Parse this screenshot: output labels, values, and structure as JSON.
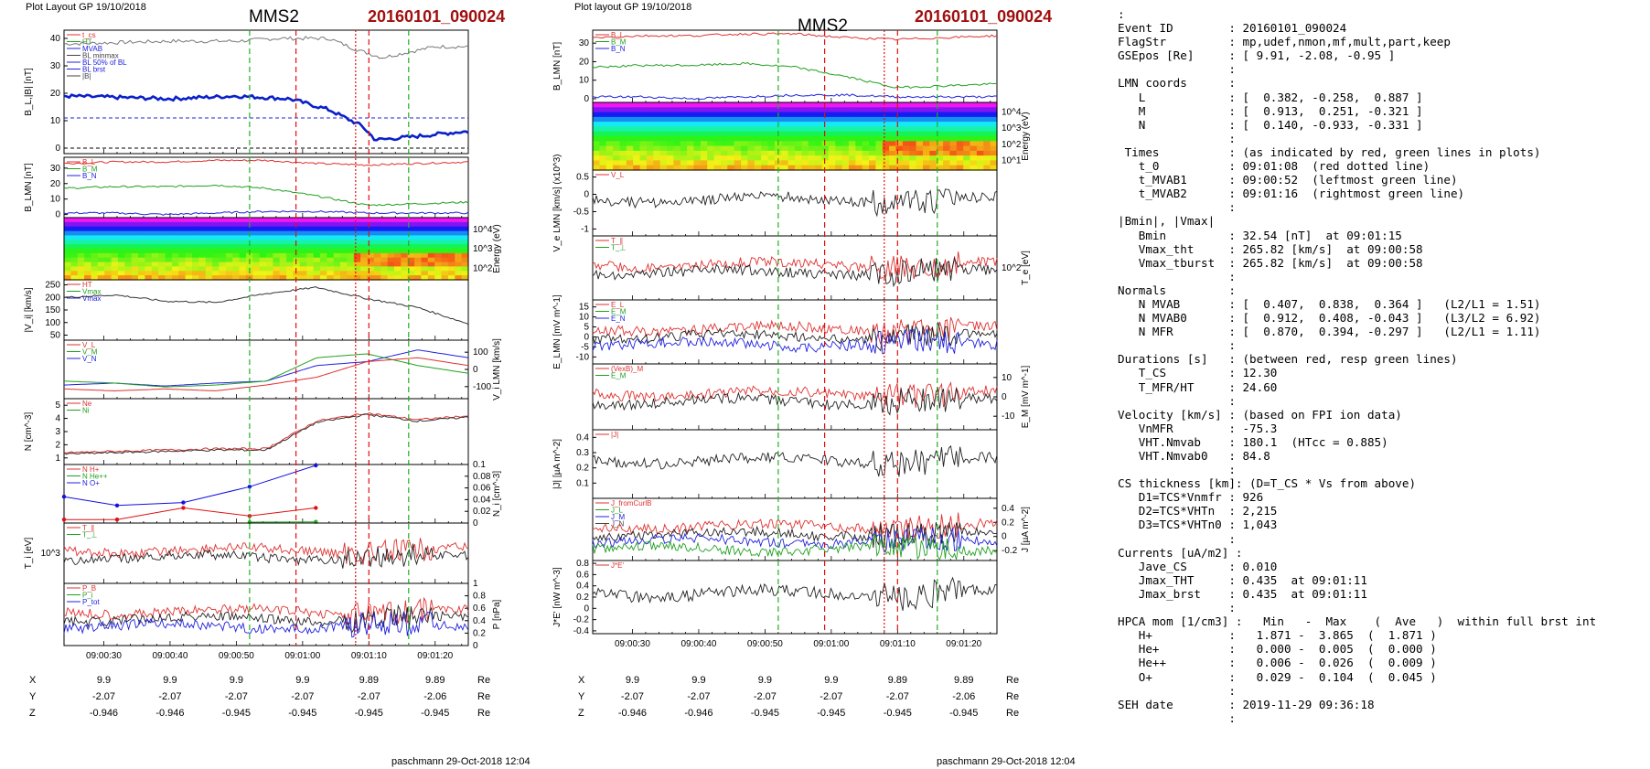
{
  "header": {
    "left_plot_label": "Plot Layout GP 19/10/2018",
    "mid_plot_label": "Plot layout GP 19/10/2018",
    "spacecraft": "MMS2",
    "event": "20160101_090024",
    "footer": "paschmann 29-Oct-2018 12:04"
  },
  "colors": {
    "event_red": "#a01010",
    "vline_red": "#e01010",
    "vline_green": "#20b020",
    "blue": "#1010e0",
    "dark_blue": "#0a20c8"
  },
  "time_ticks": [
    "09:00:30",
    "09:00:40",
    "09:00:50",
    "09:01:00",
    "09:01:10",
    "09:01:20"
  ],
  "coords": {
    "row_labels": [
      "X",
      "Y",
      "Z"
    ],
    "unit": "Re",
    "X": [
      "9.9",
      "9.9",
      "9.9",
      "9.9",
      "9.89",
      "9.89"
    ],
    "Y": [
      "-2.07",
      "-2.07",
      "-2.07",
      "-2.07",
      "-2.07",
      "-2.06"
    ],
    "Z": [
      "-0.946",
      "-0.946",
      "-0.945",
      "-0.945",
      "-0.945",
      "-0.945"
    ]
  },
  "chart_data": [
    {
      "type": "line",
      "title": "MMS2 20160101_090024",
      "ylabel": "B_L,|B| [nT]",
      "ylim": [
        -2,
        43
      ],
      "yticks": [
        0,
        10,
        20,
        30,
        40
      ],
      "legend": [
        "t_cs",
        "HT",
        "MVAB",
        "BL minmax",
        "BL 50% of BL",
        "BL brst",
        "|B|"
      ],
      "series": [
        {
          "name": "|B|",
          "x": [
            "09:00:24",
            "09:00:40",
            "09:00:50",
            "09:00:56",
            "09:01:04",
            "09:01:08",
            "09:01:12",
            "09:01:20",
            "09:01:24"
          ],
          "values": [
            38,
            39,
            39,
            40,
            40,
            36,
            33,
            37,
            37
          ]
        },
        {
          "name": "BL brst",
          "x": [
            "09:00:24",
            "09:00:40",
            "09:00:50",
            "09:00:58",
            "09:01:04",
            "09:01:09",
            "09:01:11",
            "09:01:16",
            "09:01:24"
          ],
          "values": [
            19,
            18,
            19,
            18,
            14,
            8,
            3,
            4,
            6
          ]
        }
      ],
      "hlines": [
        11,
        0
      ]
    },
    {
      "type": "line",
      "ylabel": "B_LMN [nT]",
      "ylim": [
        -2,
        37
      ],
      "yticks": [
        0,
        10,
        20,
        30
      ],
      "legend": [
        "B_L",
        "B_M",
        "B_N"
      ],
      "series": [
        {
          "name": "B_L",
          "values": [
            33,
            34,
            34,
            35,
            35,
            33,
            32,
            33,
            34
          ]
        },
        {
          "name": "B_M",
          "values": [
            17,
            18,
            18,
            19,
            17,
            12,
            6,
            7,
            8
          ]
        },
        {
          "name": "B_N",
          "values": [
            1,
            1,
            0,
            1,
            2,
            2,
            1,
            1,
            1
          ]
        }
      ]
    },
    {
      "type": "heatmap",
      "ylabel": "Energy (eV)",
      "ytick_labels": [
        "10^4",
        "10^3",
        "10^2"
      ]
    },
    {
      "type": "line",
      "ylabel": "|V_i| [km/s]",
      "ylim": [
        30,
        270
      ],
      "yticks": [
        50,
        100,
        150,
        200,
        250
      ],
      "legend": [
        "HT",
        "Vmax",
        "Vmax"
      ],
      "series": [
        {
          "name": "|V_i|",
          "values": [
            200,
            210,
            185,
            180,
            215,
            240,
            195,
            160,
            95
          ]
        }
      ]
    },
    {
      "type": "line",
      "ylabel": "V_i LMN [km/s]",
      "yticks": [
        100,
        0,
        -100
      ],
      "legend": [
        "V_L",
        "V_M",
        "V_N"
      ],
      "series": [
        {
          "name": "V_L",
          "values": [
            -80,
            -70,
            -85,
            -70,
            -60,
            20,
            40,
            100,
            60
          ]
        },
        {
          "name": "V_M",
          "values": [
            -60,
            -70,
            -90,
            -80,
            -60,
            60,
            80,
            20,
            -20
          ]
        },
        {
          "name": "V_N",
          "values": [
            -100,
            -110,
            -100,
            -110,
            -80,
            -40,
            40,
            60,
            20
          ]
        }
      ]
    },
    {
      "type": "line",
      "ylabel": "N [cm^-3]",
      "ylim": [
        0.5,
        5.5
      ],
      "yticks": [
        1,
        2,
        3,
        4,
        5
      ],
      "legend": [
        "Ne",
        "Ni"
      ],
      "series": [
        {
          "name": "Ne",
          "values": [
            1.4,
            1.5,
            1.6,
            1.7,
            1.7,
            3.8,
            4.4,
            3.9,
            4.2
          ]
        },
        {
          "name": "Ni",
          "values": [
            1.3,
            1.4,
            1.5,
            1.6,
            1.6,
            3.7,
            4.3,
            3.8,
            4.1
          ]
        }
      ]
    },
    {
      "type": "line",
      "ylabel": "N_i [cm^-3]",
      "ylim": [
        0,
        0.1
      ],
      "yticks": [
        0.0,
        0.02,
        0.04,
        0.06,
        0.08,
        0.1
      ],
      "legend": [
        "N H+",
        "N He++",
        "N O+"
      ],
      "series": [
        {
          "name": "N O+",
          "x": [
            "09:00:24",
            "09:00:32",
            "09:00:42",
            "09:00:52",
            "09:01:02"
          ],
          "values": [
            0.045,
            0.03,
            0.035,
            0.062,
            0.104
          ]
        },
        {
          "name": "N He++",
          "x": [
            "09:00:24",
            "09:00:32",
            "09:00:42",
            "09:00:52",
            "09:01:02"
          ],
          "values": [
            0.006,
            0.006,
            0.026,
            0.012,
            0.026
          ]
        },
        {
          "name": "N H+",
          "x": [
            "09:00:52",
            "09:01:02"
          ],
          "values": [
            0.0,
            0.002
          ]
        }
      ]
    },
    {
      "type": "line",
      "ylabel": "T_i [eV]",
      "ytick_labels": [
        "10^3"
      ],
      "legend": [
        "T_∥",
        "T_⊥"
      ],
      "series": []
    },
    {
      "type": "line",
      "ylabel": "P [nPa]",
      "ylim": [
        0,
        1.0
      ],
      "yticks": [
        0.0,
        0.2,
        0.4,
        0.6,
        0.8,
        1.0
      ],
      "legend": [
        "P_B",
        "P_i",
        "P_tot"
      ],
      "series": []
    },
    {
      "type": "line",
      "ylabel": "B_LMN [nT]",
      "ylim": [
        -2,
        37
      ],
      "yticks": [
        0,
        10,
        20,
        30
      ],
      "legend": [
        "B_L",
        "B_M",
        "B_N"
      ],
      "series": [
        {
          "name": "B_L",
          "values": [
            33,
            34,
            34,
            35,
            35,
            33,
            32,
            33,
            34
          ]
        },
        {
          "name": "B_M",
          "values": [
            17,
            18,
            18,
            19,
            17,
            12,
            6,
            7,
            8
          ]
        },
        {
          "name": "B_N",
          "values": [
            1,
            1,
            0,
            1,
            2,
            2,
            1,
            1,
            1
          ]
        }
      ]
    },
    {
      "type": "heatmap",
      "ylabel": "Energy (eV)",
      "ytick_labels": [
        "10^4",
        "10^3",
        "10^2",
        "10^1"
      ]
    },
    {
      "type": "line",
      "ylabel": "V_e LMN [km/s] (x10^3)",
      "ylim": [
        -1.2,
        0.7
      ],
      "yticks": [
        -1.0,
        -0.5,
        0.0,
        0.5
      ],
      "legend": [
        "V_L"
      ],
      "series": []
    },
    {
      "type": "line",
      "ylabel": "T_e [eV]",
      "ytick_labels": [
        "10^2"
      ],
      "legend": [
        "T_∥",
        "T_⊥"
      ],
      "series": []
    },
    {
      "type": "line",
      "ylabel": "E_LMN [mV m^-1]",
      "yticks": [
        15,
        10,
        5,
        0,
        -5,
        -10
      ],
      "legend": [
        "E_L",
        "E_M",
        "E_N"
      ],
      "series": []
    },
    {
      "type": "line",
      "ylabel": "E_M [mV m^-1]",
      "yticks": [
        10,
        0,
        -10
      ],
      "legend": [
        "(VexB)_M",
        "E_M"
      ],
      "series": []
    },
    {
      "type": "line",
      "ylabel": "|J| [µA m^-2]",
      "ylim": [
        0,
        0.45
      ],
      "yticks": [
        0.1,
        0.2,
        0.3,
        0.4
      ],
      "legend": [
        "|J|"
      ],
      "series": []
    },
    {
      "type": "line",
      "ylabel": "J [µA m^-2]",
      "yticks": [
        0.4,
        0.2,
        0.0,
        -0.2
      ],
      "legend": [
        "J_fromCurlB",
        "J_L",
        "J_M",
        "J_N"
      ],
      "series": []
    },
    {
      "type": "line",
      "ylabel": "J*E' [nW m^-3]",
      "ylim": [
        -0.45,
        0.85
      ],
      "yticks": [
        0.8,
        0.6,
        0.4,
        0.2,
        0.0,
        -0.2,
        -0.4
      ],
      "legend": [
        "J*E'"
      ],
      "series": []
    }
  ],
  "info": {
    "lines": [
      ":",
      "Event ID        : 20160101_090024",
      "FlagStr         : mp,udef,nmon,mf,mult,part,keep",
      "GSEpos [Re]     : [ 9.91, -2.08, -0.95 ]",
      "                :",
      "LMN coords      :",
      "   L            : [  0.382, -0.258,  0.887 ]",
      "   M            : [  0.913,  0.251, -0.321 ]",
      "   N            : [  0.140, -0.933, -0.331 ]",
      "                :",
      " Times          : (as indicated by red, green lines in plots)",
      "   t_0          : 09:01:08  (red dotted line)",
      "   t_MVAB1      : 09:00:52  (leftmost green line)",
      "   t_MVAB2      : 09:01:16  (rightmost green line)",
      "                :",
      "|Bmin|, |Vmax|",
      "   Bmin         : 32.54 [nT]  at 09:01:15",
      "   Vmax_tht     : 265.82 [km/s]  at 09:00:58",
      "   Vmax_tburst  : 265.82 [km/s]  at 09:00:58",
      "                :",
      "Normals         :",
      "   N MVAB       : [  0.407,  0.838,  0.364 ]   (L2/L1 = 1.51)",
      "   N MVAB0      : [  0.912,  0.408, -0.043 ]   (L3/L2 = 6.92)",
      "   N MFR        : [  0.870,  0.394, -0.297 ]   (L2/L1 = 1.11)",
      "                :",
      "Durations [s]   : (between red, resp green lines)",
      "   T_CS         : 12.30",
      "   T_MFR/HT     : 24.60",
      "                :",
      "Velocity [km/s] : (based on FPI ion data)",
      "   VnMFR        : -75.3",
      "   VHT.Nmvab    : 180.1  (HTcc = 0.885)",
      "   VHT.Nmvab0   : 84.8",
      "                :",
      "CS thickness [km]: (D=T_CS * Vs from above)",
      "   D1=TCS*Vnmfr : 926",
      "   D2=TCS*VHTn  : 2,215",
      "   D3=TCS*VHTn0 : 1,043",
      "                :",
      "Currents [uA/m2] :",
      "   Jave_CS      : 0.010",
      "   Jmax_THT     : 0.435  at 09:01:11",
      "   Jmax_brst    : 0.435  at 09:01:11",
      "                :",
      "HPCA mom [1/cm3] :   Min   -  Max    (  Ave   )  within full brst int",
      "   H+           :   1.871 -  3.865  (  1.871 )",
      "   He+          :   0.000 -  0.005  (  0.000 )",
      "   He++         :   0.006 -  0.026  (  0.009 )",
      "   O+           :   0.029 -  0.104  (  0.045 )",
      "                :",
      "SEH date        : 2019-11-29 09:36:18",
      "                :"
    ]
  }
}
